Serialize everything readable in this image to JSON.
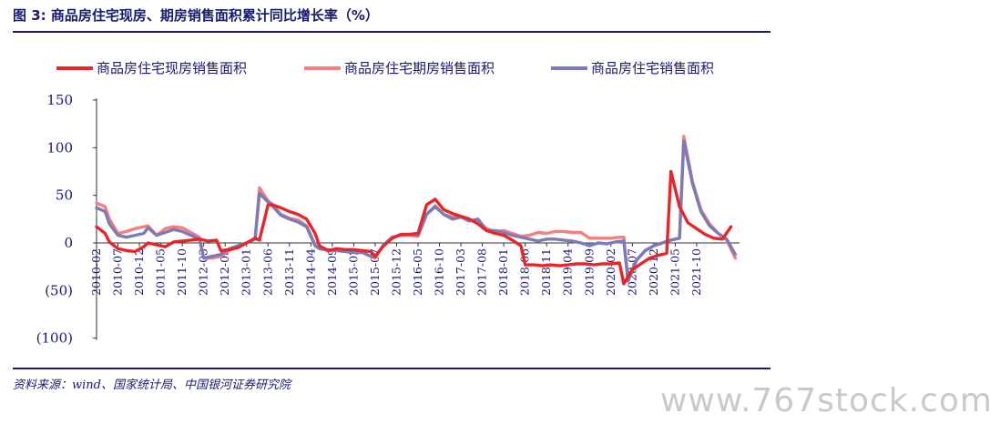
{
  "header": {
    "figure_title": "图 3:  商品房住宅现房、期房销售面积累计同比增长率（%）"
  },
  "footer": {
    "source": "资料来源：wind、国家统计局、中国银河证券研究院",
    "watermark": "www.767stock.com"
  },
  "chart_data": {
    "type": "line",
    "title": "",
    "xlabel": "",
    "ylabel": "",
    "ylim": [
      -100,
      150
    ],
    "yticks": [
      150,
      100,
      50,
      0,
      -50,
      -100
    ],
    "ytick_labels": [
      "150",
      "100",
      "50",
      "0",
      "(50)",
      "(100)"
    ],
    "xtick_labels": [
      "2010-02",
      "2010-07",
      "2010-12",
      "2011-05",
      "2011-10",
      "2012-03",
      "2012-08",
      "2013-01",
      "2013-06",
      "2013-11",
      "2014-04",
      "2014-09",
      "2015-02",
      "2015-07",
      "2015-12",
      "2016-05",
      "2016-10",
      "2017-03",
      "2017-08",
      "2018-01",
      "2018-06",
      "2018-11",
      "2019-04",
      "2019-09",
      "2020-02",
      "2020-07",
      "2020-12",
      "2021-05",
      "2021-10"
    ],
    "legend_position": "top",
    "series": [
      {
        "name": "商品房住宅现房销售面积",
        "color": "#e8262a",
        "values": [
          [
            0,
            17
          ],
          [
            2,
            10
          ],
          [
            3,
            1
          ],
          [
            5,
            -6
          ],
          [
            7,
            -8
          ],
          [
            9,
            -9
          ],
          [
            11,
            -4
          ],
          [
            12,
            0
          ],
          [
            14,
            -2
          ],
          [
            16,
            -4
          ],
          [
            18,
            1
          ],
          [
            20,
            2
          ],
          [
            22,
            3
          ],
          [
            24,
            4
          ],
          [
            26,
            2
          ],
          [
            28,
            3
          ],
          [
            29,
            -8
          ],
          [
            31,
            -7
          ],
          [
            33,
            -5
          ],
          [
            35,
            0
          ],
          [
            37,
            5
          ],
          [
            38,
            3
          ],
          [
            40,
            40
          ],
          [
            41,
            40
          ],
          [
            43,
            37
          ],
          [
            45,
            33
          ],
          [
            47,
            30
          ],
          [
            49,
            25
          ],
          [
            51,
            10
          ],
          [
            52,
            -3
          ],
          [
            54,
            -8
          ],
          [
            56,
            -6
          ],
          [
            58,
            -7
          ],
          [
            60,
            -7
          ],
          [
            62,
            -8
          ],
          [
            64,
            -9
          ],
          [
            65,
            -14
          ],
          [
            67,
            -3
          ],
          [
            69,
            5
          ],
          [
            71,
            9
          ],
          [
            73,
            9
          ],
          [
            75,
            10
          ],
          [
            77,
            40
          ],
          [
            79,
            46
          ],
          [
            81,
            35
          ],
          [
            83,
            31
          ],
          [
            85,
            28
          ],
          [
            87,
            25
          ],
          [
            89,
            20
          ],
          [
            91,
            13
          ],
          [
            93,
            10
          ],
          [
            95,
            8
          ],
          [
            97,
            3
          ],
          [
            99,
            -3
          ],
          [
            100,
            -23
          ],
          [
            102,
            -23
          ],
          [
            104,
            -24
          ],
          [
            106,
            -23
          ],
          [
            108,
            -24
          ],
          [
            110,
            -23
          ],
          [
            112,
            -22
          ],
          [
            114,
            -22
          ],
          [
            116,
            -23
          ],
          [
            118,
            -22
          ],
          [
            120,
            -22
          ],
          [
            122,
            -21
          ],
          [
            123,
            -43
          ],
          [
            125,
            -28
          ],
          [
            127,
            -22
          ],
          [
            129,
            -16
          ],
          [
            131,
            -13
          ],
          [
            133,
            -11
          ],
          [
            134,
            75
          ],
          [
            136,
            38
          ],
          [
            138,
            21
          ],
          [
            140,
            15
          ],
          [
            142,
            9
          ],
          [
            144,
            5
          ],
          [
            146,
            4
          ],
          [
            148,
            17
          ]
        ]
      },
      {
        "name": "商品房住宅期房销售面积",
        "color": "#f4807e",
        "values": [
          [
            0,
            42
          ],
          [
            2,
            38
          ],
          [
            3,
            25
          ],
          [
            5,
            10
          ],
          [
            7,
            12
          ],
          [
            9,
            15
          ],
          [
            11,
            17
          ],
          [
            12,
            18
          ],
          [
            14,
            8
          ],
          [
            16,
            15
          ],
          [
            18,
            17
          ],
          [
            20,
            16
          ],
          [
            22,
            11
          ],
          [
            24,
            6
          ],
          [
            25,
            -16
          ],
          [
            27,
            -16
          ],
          [
            29,
            -14
          ],
          [
            31,
            -8
          ],
          [
            33,
            -3
          ],
          [
            35,
            0
          ],
          [
            37,
            4
          ],
          [
            38,
            58
          ],
          [
            40,
            44
          ],
          [
            41,
            41
          ],
          [
            43,
            30
          ],
          [
            45,
            26
          ],
          [
            47,
            24
          ],
          [
            49,
            18
          ],
          [
            51,
            -2
          ],
          [
            52,
            -6
          ],
          [
            54,
            -8
          ],
          [
            56,
            -8
          ],
          [
            58,
            -9
          ],
          [
            60,
            -10
          ],
          [
            62,
            -10
          ],
          [
            64,
            -14
          ],
          [
            65,
            -16
          ],
          [
            67,
            -2
          ],
          [
            69,
            6
          ],
          [
            71,
            8
          ],
          [
            73,
            8
          ],
          [
            75,
            7
          ],
          [
            77,
            30
          ],
          [
            79,
            39
          ],
          [
            81,
            30
          ],
          [
            83,
            27
          ],
          [
            85,
            28
          ],
          [
            87,
            24
          ],
          [
            89,
            23
          ],
          [
            91,
            15
          ],
          [
            93,
            12
          ],
          [
            95,
            13
          ],
          [
            97,
            10
          ],
          [
            99,
            7
          ],
          [
            101,
            8
          ],
          [
            103,
            11
          ],
          [
            105,
            10
          ],
          [
            107,
            12
          ],
          [
            109,
            12
          ],
          [
            111,
            11
          ],
          [
            113,
            11
          ],
          [
            115,
            5
          ],
          [
            116,
            5
          ],
          [
            118,
            5
          ],
          [
            120,
            5
          ],
          [
            122,
            6
          ],
          [
            123,
            6
          ],
          [
            124,
            -40
          ],
          [
            126,
            -18
          ],
          [
            128,
            -8
          ],
          [
            130,
            -3
          ],
          [
            132,
            0
          ],
          [
            134,
            3
          ],
          [
            136,
            5
          ],
          [
            137,
            112
          ],
          [
            139,
            65
          ],
          [
            141,
            35
          ],
          [
            143,
            20
          ],
          [
            145,
            10
          ],
          [
            147,
            3
          ],
          [
            149,
            -16
          ]
        ]
      },
      {
        "name": "商品房住宅销售面积",
        "color": "#7b7bb8",
        "values": [
          [
            0,
            37
          ],
          [
            2,
            33
          ],
          [
            3,
            20
          ],
          [
            5,
            8
          ],
          [
            7,
            6
          ],
          [
            9,
            8
          ],
          [
            11,
            10
          ],
          [
            12,
            16
          ],
          [
            14,
            8
          ],
          [
            16,
            11
          ],
          [
            18,
            14
          ],
          [
            20,
            12
          ],
          [
            22,
            8
          ],
          [
            24,
            4
          ],
          [
            25,
            -16
          ],
          [
            27,
            -14
          ],
          [
            29,
            -12
          ],
          [
            31,
            -6
          ],
          [
            33,
            -3
          ],
          [
            35,
            0
          ],
          [
            37,
            4
          ],
          [
            38,
            52
          ],
          [
            40,
            43
          ],
          [
            41,
            39
          ],
          [
            43,
            29
          ],
          [
            45,
            25
          ],
          [
            47,
            22
          ],
          [
            49,
            17
          ],
          [
            51,
            -3
          ],
          [
            52,
            -6
          ],
          [
            54,
            -7
          ],
          [
            56,
            -8
          ],
          [
            58,
            -9
          ],
          [
            60,
            -10
          ],
          [
            62,
            -10
          ],
          [
            64,
            -14
          ],
          [
            65,
            -15
          ],
          [
            67,
            -2
          ],
          [
            69,
            6
          ],
          [
            71,
            8
          ],
          [
            73,
            9
          ],
          [
            75,
            8
          ],
          [
            77,
            30
          ],
          [
            79,
            38
          ],
          [
            81,
            30
          ],
          [
            83,
            25
          ],
          [
            85,
            27
          ],
          [
            87,
            23
          ],
          [
            89,
            25
          ],
          [
            91,
            13
          ],
          [
            93,
            13
          ],
          [
            95,
            11
          ],
          [
            97,
            8
          ],
          [
            99,
            6
          ],
          [
            101,
            4
          ],
          [
            103,
            2
          ],
          [
            105,
            4
          ],
          [
            107,
            4
          ],
          [
            109,
            3
          ],
          [
            111,
            2
          ],
          [
            113,
            0
          ],
          [
            115,
            -3
          ],
          [
            117,
            0
          ],
          [
            119,
            -1
          ],
          [
            121,
            1
          ],
          [
            123,
            2
          ],
          [
            124,
            -40
          ],
          [
            126,
            -18
          ],
          [
            128,
            -8
          ],
          [
            130,
            -3
          ],
          [
            132,
            0
          ],
          [
            134,
            3
          ],
          [
            136,
            5
          ],
          [
            137,
            107
          ],
          [
            139,
            63
          ],
          [
            141,
            33
          ],
          [
            143,
            18
          ],
          [
            145,
            10
          ],
          [
            147,
            4
          ],
          [
            149,
            -12
          ]
        ]
      }
    ]
  }
}
